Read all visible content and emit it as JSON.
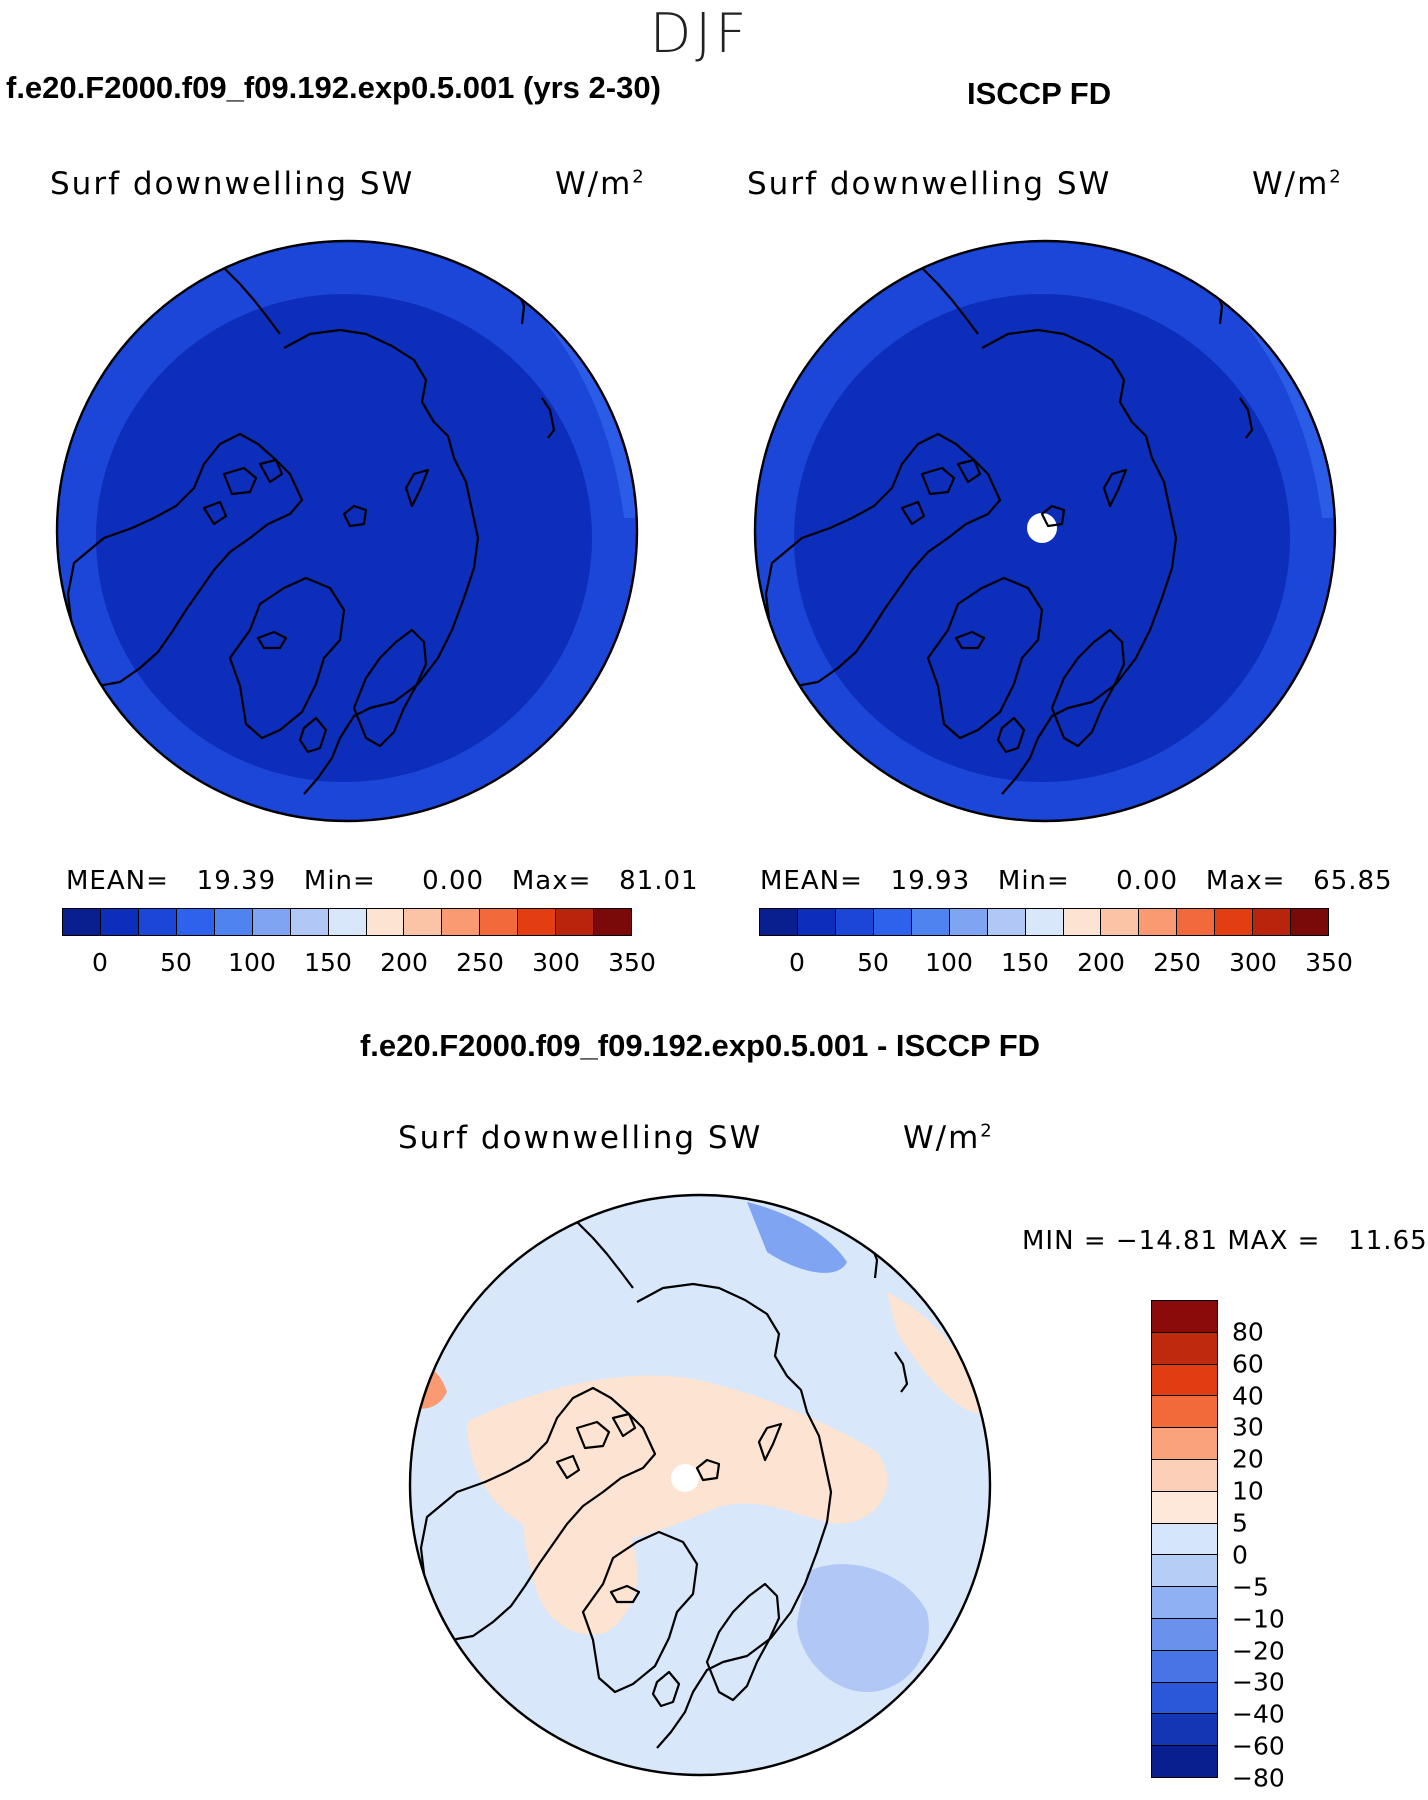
{
  "season": "DJF",
  "panels": {
    "model": {
      "title": "f.e20.F2000.f09_f09.192.exp0.5.001 (yrs 2-30)",
      "variable": "Surf downwelling SW",
      "units_base": "W/m",
      "units_exp": "2",
      "stats": "MEAN=   19.39   Min=     0.00   Max=   81.01",
      "mean": 19.39,
      "min": 0.0,
      "max": 81.01
    },
    "obs": {
      "title": "ISCCP FD",
      "variable": "Surf downwelling SW",
      "units_base": "W/m",
      "units_exp": "2",
      "stats": "MEAN=   19.93   Min=     0.00   Max=   65.85",
      "mean": 19.93,
      "min": 0.0,
      "max": 65.85
    },
    "diff": {
      "title": "f.e20.F2000.f09_f09.192.exp0.5.001 - ISCCP FD",
      "variable": "Surf downwelling SW",
      "units_base": "W/m",
      "units_exp": "2",
      "stats": "MIN = −14.81 MAX =   11.65",
      "min": -14.81,
      "max": 11.65
    }
  },
  "colorbar_main": {
    "colors": [
      "#0a1f8f",
      "#0d2dbb",
      "#1b46d8",
      "#2f62ec",
      "#4f83f0",
      "#7ea4f2",
      "#b1c7f6",
      "#d9e7fa",
      "#fde4d2",
      "#fcc4a6",
      "#f99a72",
      "#f26a3c",
      "#e33e12",
      "#b8250c",
      "#7a0a0a"
    ],
    "labels": [
      "0",
      "50",
      "100",
      "150",
      "200",
      "250",
      "300",
      "350"
    ]
  },
  "colorbar_diff": {
    "colors": [
      "#8b0a0a",
      "#bf2a0e",
      "#e23d12",
      "#f36a3a",
      "#f9a27c",
      "#fcd0b8",
      "#fde8da",
      "#d6e6fa",
      "#b6cdf6",
      "#8fb0f2",
      "#6a92ed",
      "#4775e6",
      "#2b57d9",
      "#1436b4",
      "#0a1f8f"
    ],
    "labels": [
      "80",
      "60",
      "40",
      "30",
      "20",
      "10",
      "5",
      "0",
      "−5",
      "−10",
      "−20",
      "−30",
      "−40",
      "−60",
      "−80"
    ]
  },
  "map_colors": {
    "deep_blue": "#0d2dbb",
    "mid_blue": "#1b46d8",
    "light_blue": "#2f62ec",
    "diff_neutral_blue": "#d9e7fa",
    "diff_peach": "#fde4d2",
    "diff_mid_blue": "#b1c7f6",
    "diff_blue": "#7ea4f2",
    "diff_orange": "#f99a72",
    "missing": "#ffffff"
  }
}
